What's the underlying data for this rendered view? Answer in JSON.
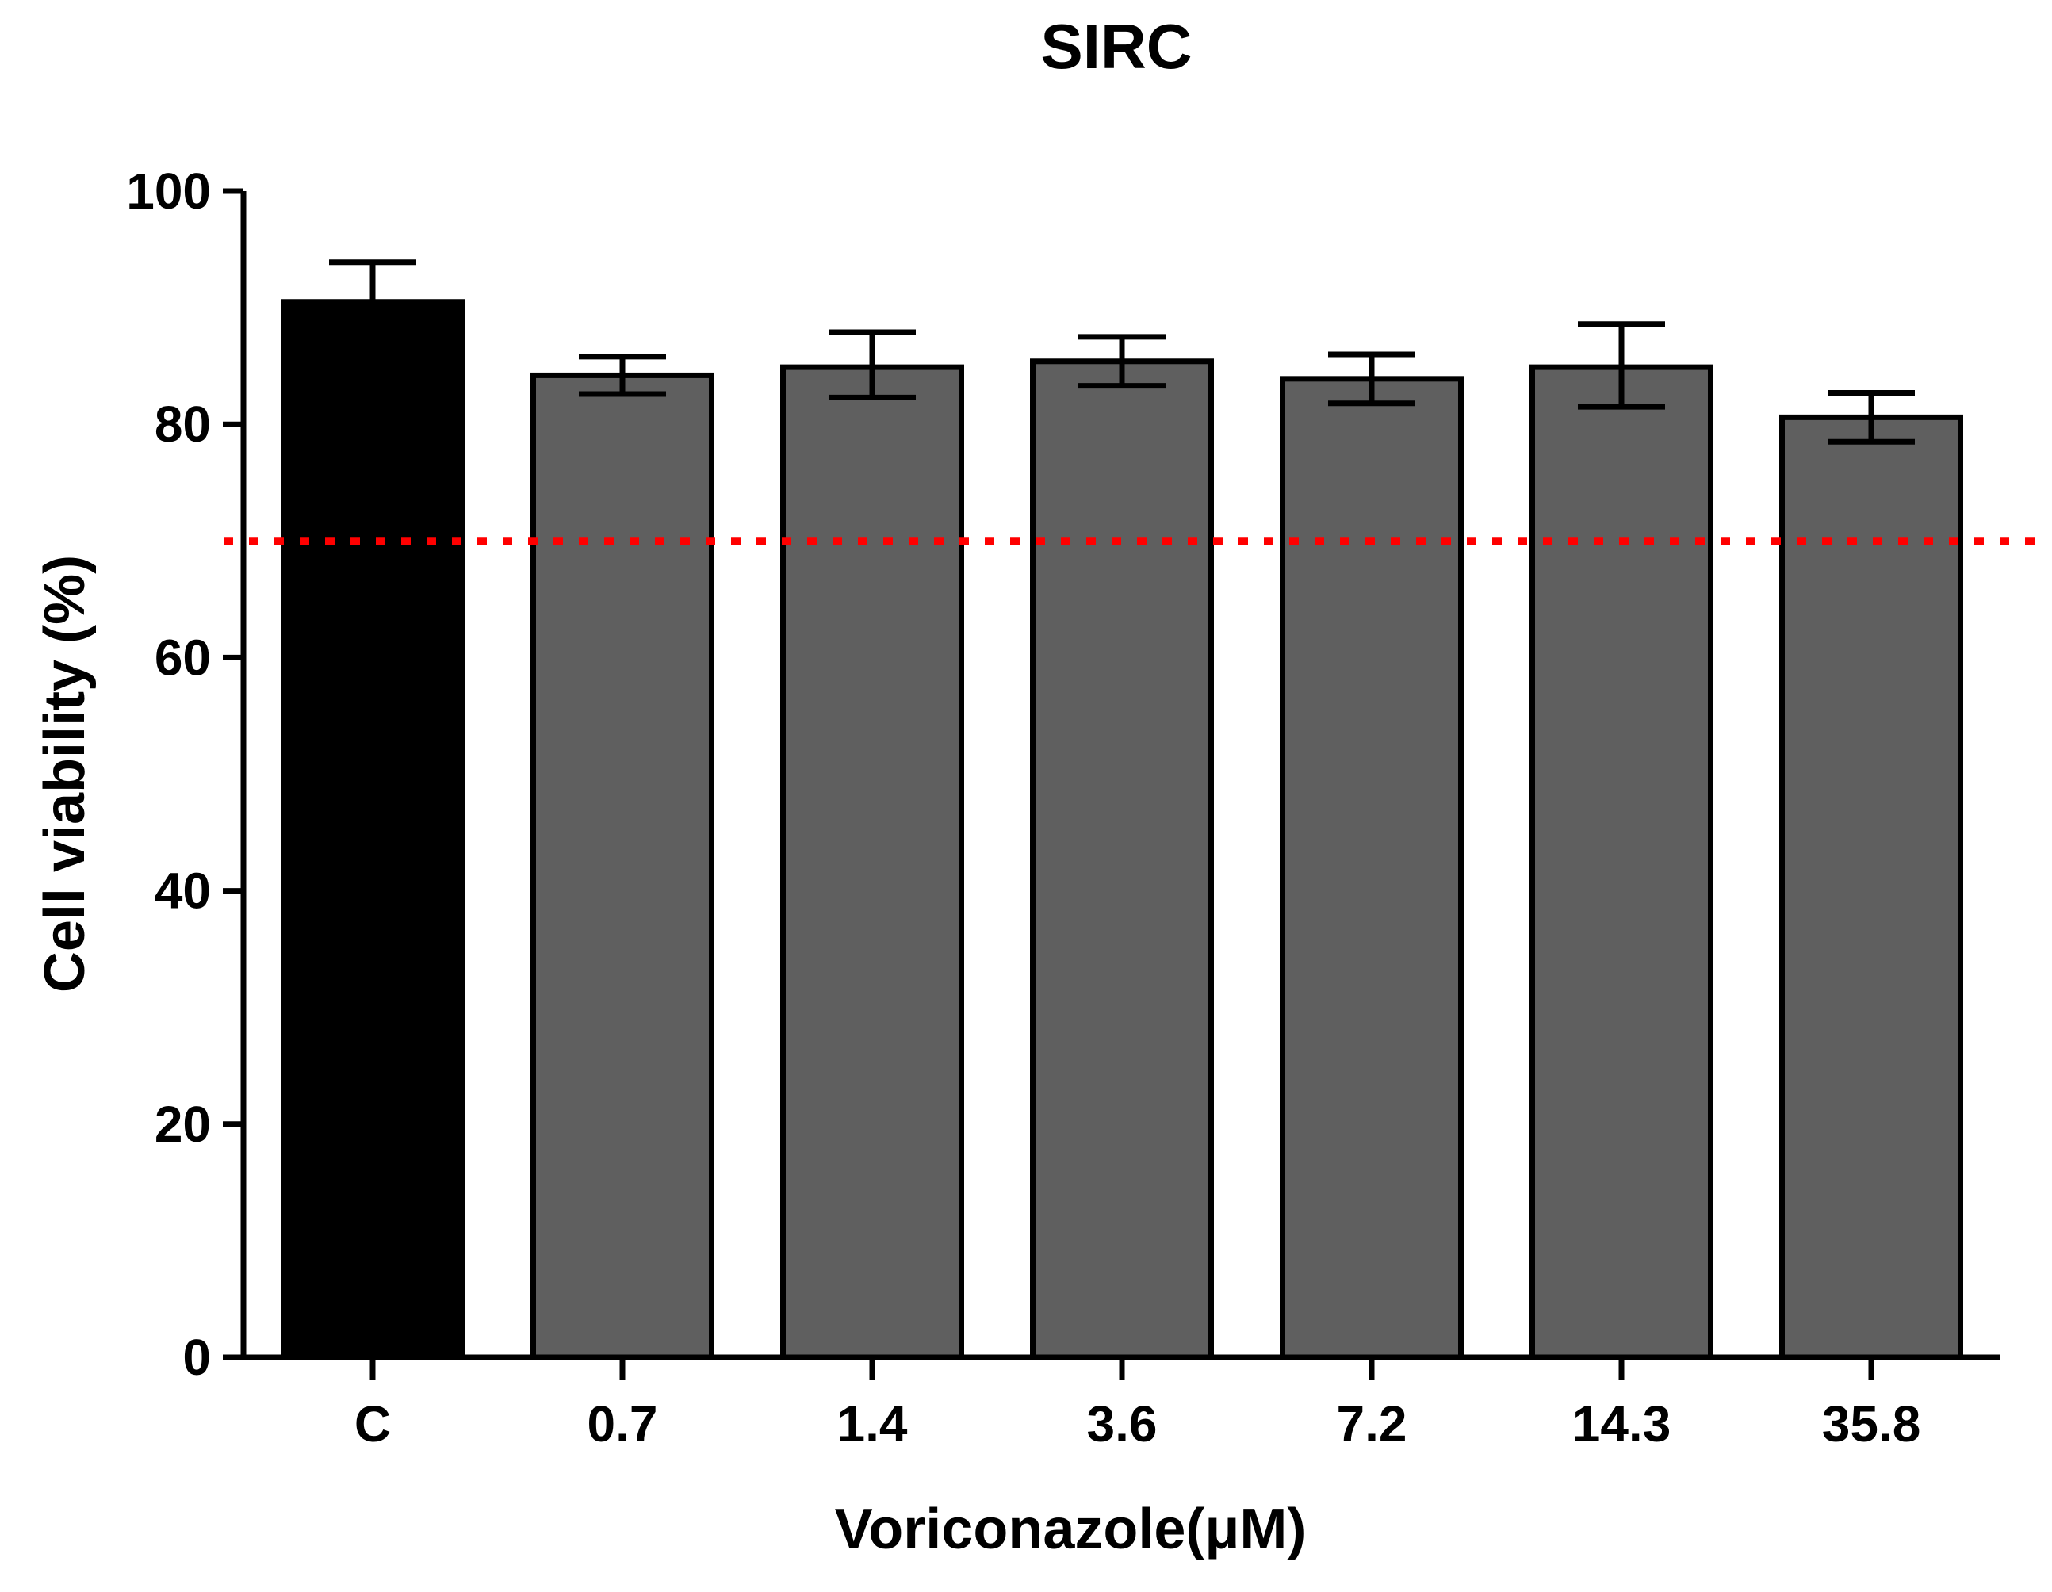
{
  "chart_data": {
    "type": "bar",
    "title": "SIRC",
    "xlabel": "Voriconazole(μM)",
    "ylabel": "Cell viability (%)",
    "categories": [
      "C",
      "0.7",
      "1.4",
      "3.6",
      "7.2",
      "14.3",
      "35.8"
    ],
    "values": [
      90.5,
      84.2,
      84.9,
      85.4,
      83.9,
      84.9,
      80.6
    ],
    "error_upper": [
      3.4,
      1.6,
      3.0,
      2.1,
      2.1,
      3.7,
      2.1
    ],
    "error_lower": [
      3.4,
      1.6,
      2.6,
      2.1,
      2.1,
      3.4,
      2.1
    ],
    "ylim": [
      0,
      100
    ],
    "yticks": [
      0,
      20,
      40,
      60,
      80,
      100
    ],
    "threshold": 70,
    "colors": {
      "control_bar": "#000000",
      "treatment_bar": "#5f5f5f",
      "threshold_line": "#ff0000",
      "axis": "#000000"
    }
  }
}
